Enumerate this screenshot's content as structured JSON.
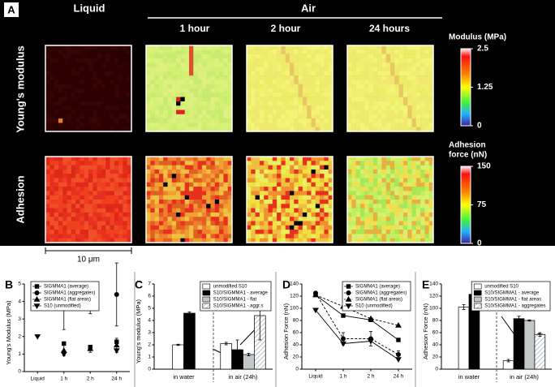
{
  "panel_a": {
    "label": "A",
    "liquid": "Liquid",
    "air": "Air",
    "times": [
      "1 hour",
      "2 hour",
      "24 hours"
    ],
    "rows": [
      "Young's modulus",
      "Adhesion"
    ],
    "colorbars": [
      {
        "title": [
          "Modulus (MPa)"
        ],
        "lim": [
          0,
          2.5
        ],
        "ticks": [
          2.5,
          1.25,
          0
        ]
      },
      {
        "title": [
          "Adhesion",
          "force (nN)"
        ],
        "lim": [
          0,
          150
        ],
        "ticks": [
          150,
          75,
          0
        ]
      }
    ],
    "scale_bar": "10 μm"
  },
  "chart_data": [
    {
      "panel": "B",
      "type": "scatter",
      "ylabel": "Young's Modulus (MPa)",
      "categories": [
        "Liquid",
        "1 h",
        "2 h",
        "24 h"
      ],
      "ylim": [
        0,
        5
      ],
      "yticks": [
        0,
        1,
        2,
        3,
        4,
        5
      ],
      "legend": "upper left",
      "series": [
        {
          "name": "SIGMMA1 (average)",
          "marker": "square",
          "color": "#000000",
          "values": [
            4.5,
            1.6,
            1.4,
            1.7
          ]
        },
        {
          "name": "SIGMMA1 (aggregates)",
          "marker": "circle",
          "color": "#000000",
          "values": [
            4.6,
            3.7,
            3.9,
            4.4
          ],
          "errors": [
            null,
            1.3,
            0.6,
            1.8
          ]
        },
        {
          "name": "SIGMMA1 (flat areas)",
          "marker": "triangle",
          "color": "#000000",
          "values": [
            null,
            1.2,
            1.3,
            1.5
          ],
          "errors": [
            null,
            0.3,
            0.2,
            0.4
          ]
        },
        {
          "name": "S10 (unmodified)",
          "marker": "triangle-down",
          "color": "#000000",
          "values": [
            2.0,
            1.0,
            null,
            1.2
          ]
        }
      ]
    },
    {
      "panel": "C",
      "type": "bar",
      "ylabel": "Young's modulus (MPa)",
      "categories": [
        "in water",
        "in air (24h)"
      ],
      "ylim": [
        0,
        7
      ],
      "yticks": [
        0,
        1,
        2,
        3,
        4,
        5,
        6,
        7
      ],
      "legend": "upper right",
      "series": [
        {
          "name": "unmodified S10",
          "color": "#ffffff",
          "values": [
            2.0,
            2.1
          ],
          "errors": [
            0.05,
            0.1
          ]
        },
        {
          "name": "S10/SIGMMA1 - average",
          "color": "#000000",
          "values": [
            4.6,
            1.6
          ],
          "errors": [
            0.1,
            0.8
          ]
        },
        {
          "name": "S10/SIGMMA1 - flat",
          "color": "#c0c8c8",
          "values": [
            null,
            1.2
          ],
          "errors": [
            null,
            0.1
          ]
        },
        {
          "name": "S10/SIGMMA1 - aggr.s",
          "color": "#ffffff",
          "hatch": true,
          "values": [
            null,
            4.4
          ],
          "errors": [
            null,
            2.0
          ]
        }
      ]
    },
    {
      "panel": "D",
      "type": "line",
      "ylabel": "Adhesion Force (nN)",
      "categories": [
        "Liquid",
        "1 h",
        "2 h",
        "24 h"
      ],
      "ylim": [
        0,
        140
      ],
      "yticks": [
        0,
        20,
        40,
        60,
        80,
        100,
        120,
        140
      ],
      "legend": "upper right",
      "series": [
        {
          "name": "SIGMMA1 (average)",
          "marker": "square",
          "color": "#000000",
          "dash": false,
          "values": [
            122,
            88,
            81,
            48
          ]
        },
        {
          "name": "SIGMMA1 (aggregates)",
          "marker": "circle",
          "color": "#000000",
          "dash": true,
          "values": [
            125,
            50,
            50,
            24
          ],
          "errors": [
            null,
            10,
            12,
            6
          ]
        },
        {
          "name": "SIGMMA1 (flat areas)",
          "marker": "triangle",
          "color": "#000000",
          "dash": true,
          "values": [
            122,
            103,
            83,
            72
          ]
        },
        {
          "name": "S10 (unmodified)",
          "marker": "triangle-down",
          "color": "#000000",
          "dash": false,
          "values": [
            97,
            42,
            46,
            16
          ]
        }
      ]
    },
    {
      "panel": "E",
      "type": "bar",
      "ylabel": "Adhesion Force (nN)",
      "categories": [
        "in water",
        "in air (24h)"
      ],
      "ylim": [
        0,
        140
      ],
      "yticks": [
        0,
        20,
        40,
        60,
        80,
        100,
        120,
        140
      ],
      "legend": "upper right",
      "series": [
        {
          "name": "unmodified S10",
          "color": "#ffffff",
          "values": [
            102,
            14
          ],
          "errors": [
            4,
            2
          ]
        },
        {
          "name": "S10/SIGMMA1 - average",
          "color": "#000000",
          "values": [
            123,
            83
          ],
          "errors": [
            3,
            4
          ]
        },
        {
          "name": "S10/SIGMMA1 - flat areas",
          "color": "#c0c8c8",
          "values": [
            null,
            80
          ],
          "errors": [
            null,
            1
          ]
        },
        {
          "name": "S10/SIGMMA1 - aggregates",
          "color": "#ffffff",
          "hatch": true,
          "values": [
            null,
            57
          ],
          "errors": [
            null,
            3
          ]
        }
      ]
    }
  ]
}
